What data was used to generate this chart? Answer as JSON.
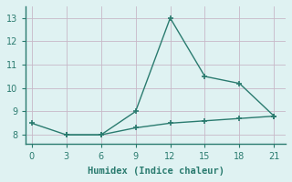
{
  "line1_x": [
    0,
    3,
    6,
    9,
    12,
    15,
    18,
    21
  ],
  "line1_y": [
    8.5,
    8.0,
    8.0,
    9.0,
    13.0,
    10.5,
    10.2,
    8.8
  ],
  "line2_x": [
    3,
    6,
    9,
    12,
    15,
    18,
    21
  ],
  "line2_y": [
    8.0,
    8.0,
    8.3,
    8.5,
    8.6,
    8.7,
    8.8
  ],
  "line_color": "#2a7b6f",
  "bg_color": "#dff2f2",
  "grid_color": "#c8b8c8",
  "spine_color": "#2a7b6f",
  "xlabel": "Humidex (Indice chaleur)",
  "xlim": [
    -0.5,
    22
  ],
  "ylim": [
    7.6,
    13.5
  ],
  "xticks": [
    0,
    3,
    6,
    9,
    12,
    15,
    18,
    21
  ],
  "yticks": [
    8,
    9,
    10,
    11,
    12,
    13
  ],
  "marker": "+",
  "marker_size": 4,
  "linewidth": 1.0,
  "xlabel_fontsize": 7.5,
  "tick_fontsize": 7
}
